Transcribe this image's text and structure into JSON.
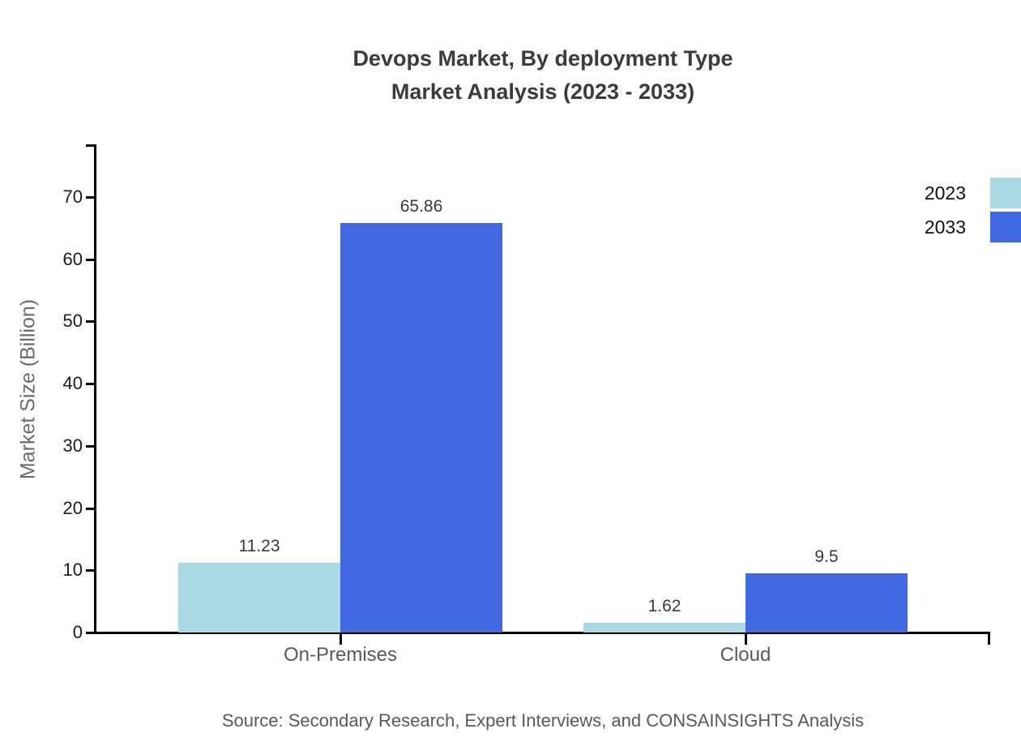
{
  "page": {
    "background": "#ffffff"
  },
  "chart_data": {
    "type": "bar",
    "title_lines": [
      "Devops Market, By deployment Type",
      "Market Analysis (2023 - 2033)"
    ],
    "categories": [
      "On-Premises",
      "Cloud"
    ],
    "series": [
      {
        "name": "2023",
        "color": "#ADD8E6",
        "values": [
          11.23,
          1.62
        ],
        "labels": [
          "11.23",
          "1.62"
        ]
      },
      {
        "name": "2033",
        "color": "#4169E1",
        "values": [
          65.86,
          9.5
        ],
        "labels": [
          "65.86",
          "9.5"
        ]
      }
    ],
    "xlabel": "",
    "ylabel": "Market Size (Billion)",
    "yticks": [
      0,
      10,
      20,
      30,
      40,
      50,
      60,
      70
    ],
    "ylim": [
      0,
      78.5
    ],
    "grid": false,
    "legend_position": "top-right",
    "bar_value_labels_shown": true,
    "source": "Source: Secondary Research, Expert Interviews, and CONSAINSIGHTS Analysis",
    "colors": {
      "axis": "#000000",
      "title_text": "#3b3b3b",
      "tick_text": "#1c1c1c",
      "category_text": "#595959",
      "value_text": "#3a3a3a",
      "ylabel_text": "#6b6b6b",
      "source_text": "#595959",
      "legend_text": "#111111"
    }
  }
}
